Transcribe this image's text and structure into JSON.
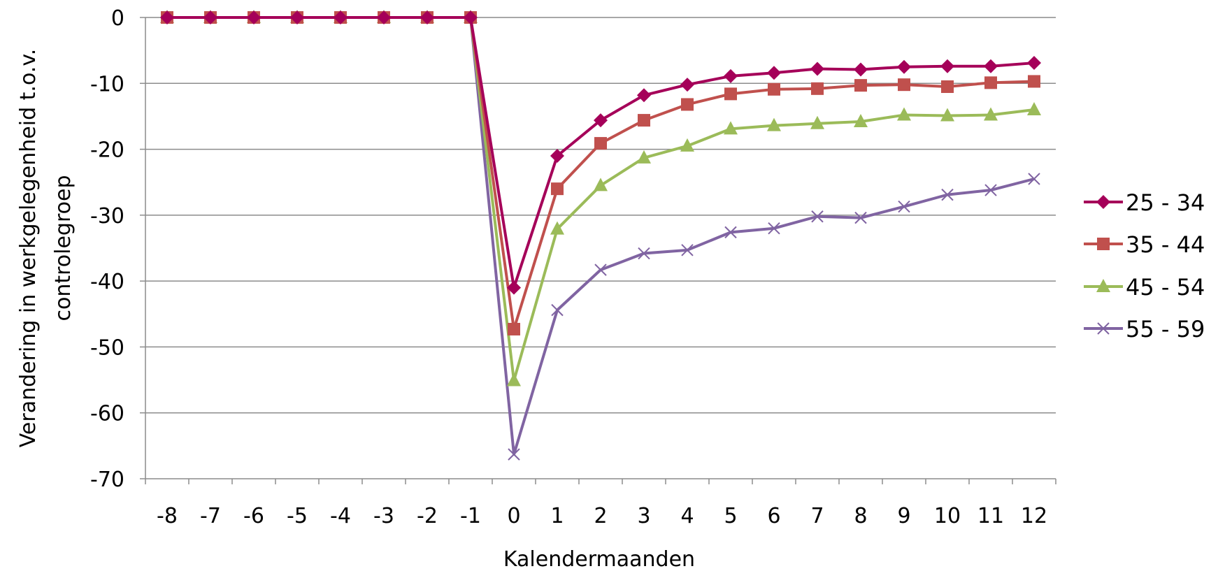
{
  "chart_data": {
    "type": "line",
    "xlabel": "Kalendermaanden",
    "ylabel_lines": [
      "Verandering in werkgelegenheid t.o.v.",
      "controlegroep"
    ],
    "categories": [
      "-8",
      "-7",
      "-6",
      "-5",
      "-4",
      "-3",
      "-2",
      "-1",
      "0",
      "1",
      "2",
      "3",
      "4",
      "5",
      "6",
      "7",
      "8",
      "9",
      "10",
      "11",
      "12"
    ],
    "ylim": [
      -70,
      0
    ],
    "yticks": [
      0,
      -10,
      -20,
      -30,
      -40,
      -50,
      -60,
      -70
    ],
    "grid": true,
    "legend_position": "right",
    "series": [
      {
        "name": "25 - 34",
        "color": "#a50059",
        "marker": "diamond",
        "values": [
          0,
          0,
          0,
          0,
          0,
          0,
          0,
          0,
          -41,
          -21,
          -15.6,
          -11.8,
          -10.2,
          -8.9,
          -8.4,
          -7.8,
          -7.9,
          -7.5,
          -7.4,
          -7.4,
          -6.9
        ]
      },
      {
        "name": "35 - 44",
        "color": "#c0504d",
        "marker": "square",
        "values": [
          0,
          0,
          0,
          0,
          0,
          0,
          0,
          0,
          -47.3,
          -26,
          -19.1,
          -15.6,
          -13.2,
          -11.6,
          -10.9,
          -10.8,
          -10.3,
          -10.2,
          -10.5,
          -9.9,
          -9.7
        ]
      },
      {
        "name": "45 - 54",
        "color": "#9bbb59",
        "marker": "triangle",
        "values": [
          0,
          0,
          0,
          0,
          0,
          0,
          0,
          0,
          -55.1,
          -32.1,
          -25.5,
          -21.3,
          -19.5,
          -16.9,
          -16.4,
          -16.1,
          -15.8,
          -14.8,
          -14.9,
          -14.8,
          -14
        ]
      },
      {
        "name": "55 - 59",
        "color": "#8064a2",
        "marker": "x",
        "values": [
          0,
          0,
          0,
          0,
          0,
          0,
          0,
          0,
          -66.3,
          -44.4,
          -38.3,
          -35.8,
          -35.3,
          -32.6,
          -32,
          -30.2,
          -30.4,
          -28.7,
          -26.9,
          -26.2,
          -24.5
        ]
      }
    ]
  }
}
